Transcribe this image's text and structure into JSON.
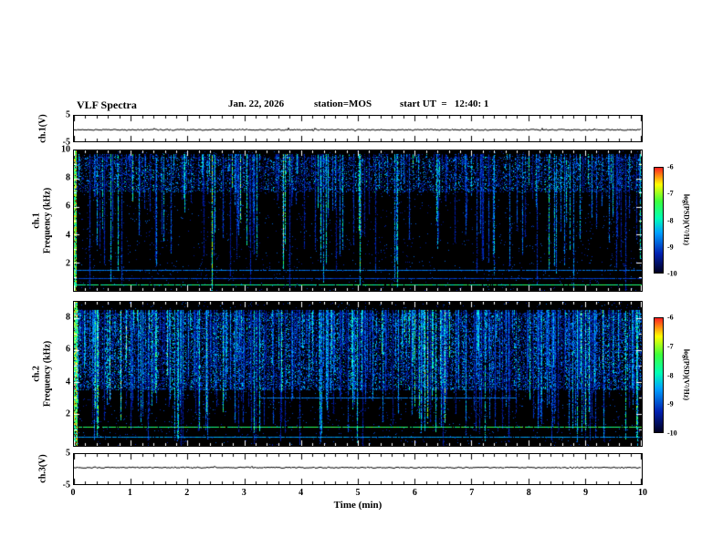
{
  "header": {
    "title": "VLF Spectra",
    "date": "Jan. 22, 2026",
    "station": "station=MOS",
    "start_ut": "start UT  =   12:40: 1"
  },
  "xaxis": {
    "label": "Time (min)",
    "lim": [
      0,
      10
    ],
    "ticks": [
      0,
      1,
      2,
      3,
      4,
      5,
      6,
      7,
      8,
      9,
      10
    ]
  },
  "colors": {
    "figure_bg": "#ffffff",
    "spectrogram_bg": "#000000",
    "frame": "#000000"
  },
  "chart_data": [
    {
      "type": "line",
      "panel": "ch1-voltage",
      "ylabel": "ch.1(V)",
      "ylim": [
        -5,
        5
      ],
      "yticks": [
        5,
        -5
      ],
      "series": [
        {
          "name": "ch.1 voltage",
          "description": "flat trace near 0 V across 0-10 min"
        }
      ],
      "render": {
        "seed": 11
      }
    },
    {
      "type": "heatmap",
      "panel": "ch1-spectrogram",
      "channel_label": "ch.1",
      "ylabel": "Frequency (kHz)",
      "ylim": [
        0,
        10
      ],
      "yticks": [
        10,
        8,
        6,
        4,
        2
      ],
      "xlim": [
        0,
        10
      ],
      "colorbar": {
        "label": "log(PSD)(V²/Hz)",
        "lim": [
          -10,
          -6
        ],
        "ticks": [
          -6,
          -7,
          -8,
          -9,
          -10
        ]
      },
      "description": "VLF spectrogram ch.1: dense hiss band 7.5-9.5 kHz, impulsive sferic vertical streaks descending to low frequency, narrowband horizontal lines near 1.5 kHz and 0.5 kHz, bright full-band transient at t=0",
      "render": {
        "seed": 7,
        "band": [
          0.05,
          0.3
        ],
        "band_density": 0.3,
        "noise": 0.015,
        "streaks": 250,
        "depth_pow": 1.7,
        "edge_cols": 3,
        "hlines": [
          {
            "f": 1.5,
            "t": 0.38
          },
          {
            "f": 0.9,
            "t": 0.3
          },
          {
            "f": 0.45,
            "t": 0.7
          }
        ]
      }
    },
    {
      "type": "heatmap",
      "panel": "ch2-spectrogram",
      "channel_label": "ch.2",
      "ylabel": "Frequency (kHz)",
      "ylim": [
        0,
        9
      ],
      "yticks": [
        8,
        6,
        4,
        2
      ],
      "xlim": [
        0,
        10
      ],
      "colorbar": {
        "label": "log(PSD)(V²/Hz)",
        "lim": [
          -10,
          -6
        ],
        "ticks": [
          -6,
          -7,
          -8,
          -9,
          -10
        ]
      },
      "description": "VLF spectrogram ch.2: denser broadband sferic activity 3-9 kHz with bright cyan/green streaks, narrowband line near 1.2 kHz full width, faint line near 3 kHz mid-interval, bright full-band transient at t=0",
      "render": {
        "seed": 23,
        "band": [
          0.08,
          0.62
        ],
        "band_density": 0.42,
        "noise": 0.02,
        "streaks": 430,
        "depth_pow": 1.15,
        "edge_cols": 4,
        "hlines": [
          {
            "f": 1.2,
            "t": 0.75
          },
          {
            "f": 3.0,
            "t": 0.4,
            "x0": 0.33,
            "x1": 0.78
          },
          {
            "f": 0.55,
            "t": 0.45
          }
        ]
      }
    },
    {
      "type": "line",
      "panel": "ch3-voltage",
      "ylabel": "ch.3(V)",
      "ylim": [
        -5,
        5
      ],
      "yticks": [
        5,
        -5
      ],
      "series": [
        {
          "name": "ch.3 voltage",
          "description": "flat trace near 0 V across 0-10 min"
        }
      ],
      "render": {
        "seed": 31
      }
    }
  ]
}
